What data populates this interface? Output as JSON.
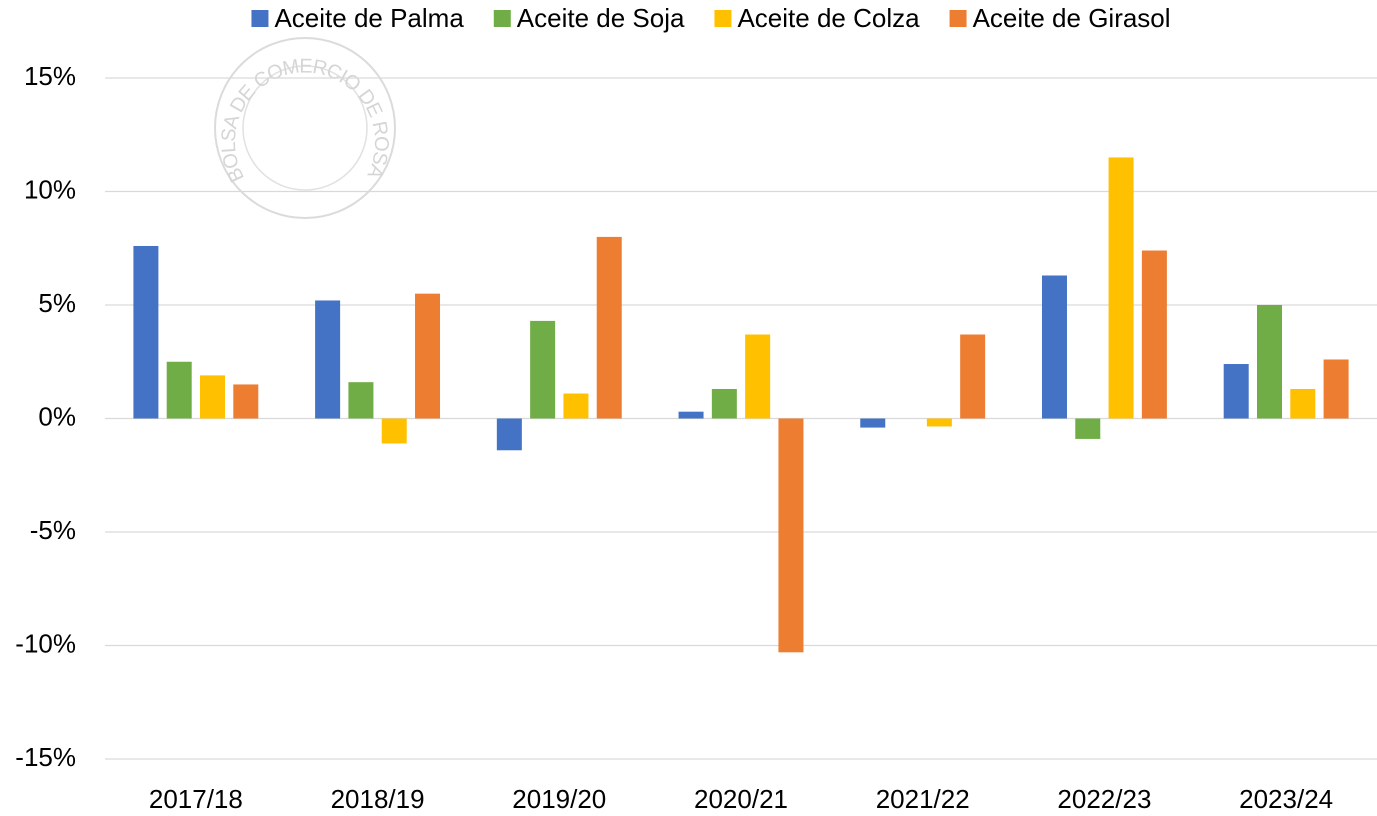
{
  "chart_data": {
    "type": "bar",
    "watermark": "BOLSA DE COMERCIO DE ROSARIO",
    "categories": [
      "2017/18",
      "2018/19",
      "2019/20",
      "2020/21",
      "2021/22",
      "2022/23",
      "2023/24"
    ],
    "series": [
      {
        "name": "Aceite de Palma",
        "color": "#4472c4",
        "values": [
          7.6,
          5.2,
          -1.4,
          0.3,
          -0.4,
          6.3,
          2.4
        ]
      },
      {
        "name": "Aceite de Soja",
        "color": "#70ad47",
        "values": [
          2.5,
          1.6,
          4.3,
          1.3,
          0,
          -0.9,
          5.0
        ]
      },
      {
        "name": "Aceite de Colza",
        "color": "#ffc000",
        "values": [
          1.9,
          -1.1,
          1.1,
          3.7,
          -0.35,
          11.5,
          1.3
        ]
      },
      {
        "name": "Aceite de Girasol",
        "color": "#ed7d31",
        "values": [
          1.5,
          5.5,
          8.0,
          -10.3,
          3.7,
          7.4,
          2.6
        ]
      }
    ],
    "ylim": [
      -15,
      15
    ],
    "yticks": [
      {
        "value": -15,
        "label": "-15%"
      },
      {
        "value": -10,
        "label": "-10%"
      },
      {
        "value": -5,
        "label": "-5%"
      },
      {
        "value": 0,
        "label": "0%"
      },
      {
        "value": 5,
        "label": "5%"
      },
      {
        "value": 10,
        "label": "10%"
      },
      {
        "value": 15,
        "label": "15%"
      }
    ],
    "grid": true,
    "legend": "top"
  }
}
